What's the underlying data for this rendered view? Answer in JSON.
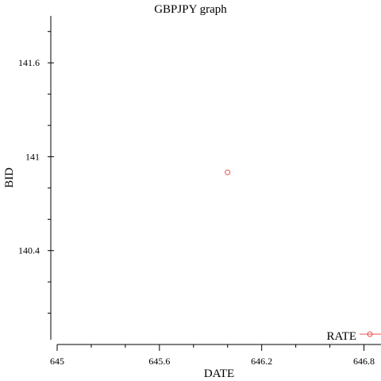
{
  "chart_data": {
    "type": "scatter",
    "title": "GBPJPY graph",
    "xlabel": "DATE",
    "ylabel": "BID",
    "xlim": [
      645,
      646.9
    ],
    "ylim": [
      139.8,
      141.9
    ],
    "xticks": [
      {
        "value": 645,
        "label": "645"
      },
      {
        "value": 645.6,
        "label": "645.6"
      },
      {
        "value": 646.2,
        "label": "646.2"
      },
      {
        "value": 646.8,
        "label": "646.8"
      }
    ],
    "yticks": [
      {
        "value": 140.4,
        "label": "140.4"
      },
      {
        "value": 141,
        "label": "141"
      },
      {
        "value": 141.6,
        "label": "141.6"
      }
    ],
    "series": [
      {
        "name": "RATE",
        "color": "#e8534a",
        "marker": "circle",
        "points": [
          {
            "x": 646.0,
            "y": 140.9
          }
        ]
      }
    ],
    "legend": {
      "position": "bottom-right"
    }
  }
}
